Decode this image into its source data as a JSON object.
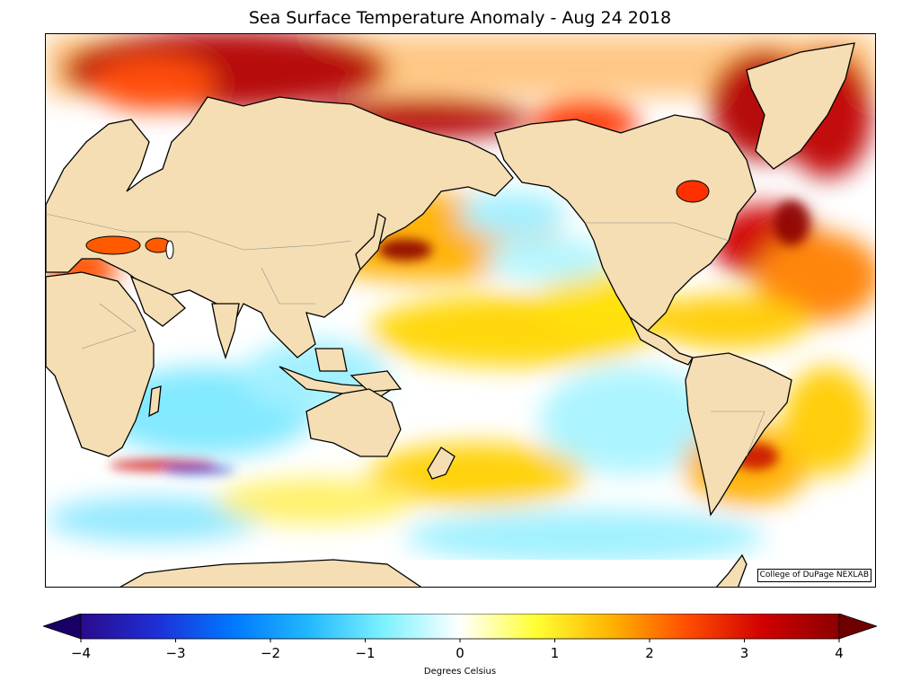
{
  "title": "Sea Surface Temperature Anomaly - Aug 24 2018",
  "credit": "College of DuPage NEXLAB",
  "colorbar": {
    "label": "Degrees Celsius",
    "min": -4,
    "max": 4,
    "ticks": [
      "−4",
      "−3",
      "−2",
      "−1",
      "0",
      "1",
      "2",
      "3",
      "4"
    ],
    "colors": [
      "#2c0a8c",
      "#1e2fd6",
      "#0078ff",
      "#22b8ff",
      "#7df2ff",
      "#ffffff",
      "#ffff33",
      "#ffb300",
      "#ff4d00",
      "#d00000",
      "#8c0000"
    ]
  },
  "colors": {
    "land": "#f5deb3",
    "coast": "#000000",
    "borders": "#8c8c8c"
  }
}
